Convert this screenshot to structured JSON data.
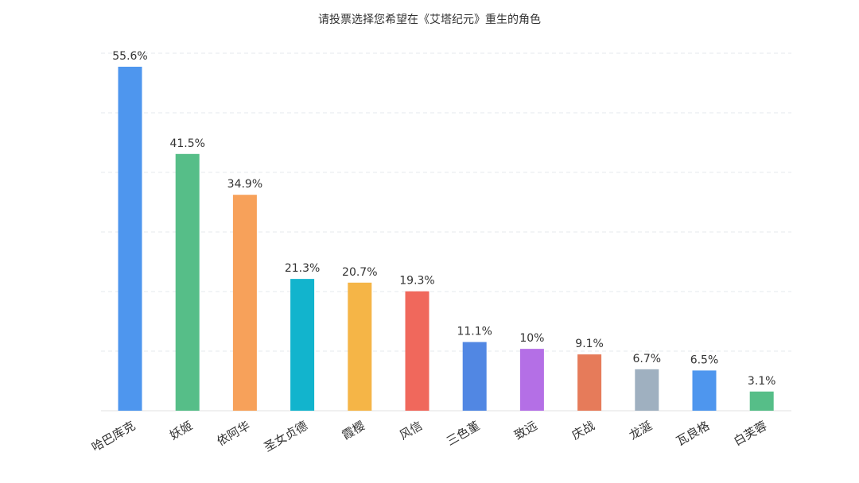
{
  "chart_data": {
    "type": "bar",
    "title": "请投票选择您希望在《艾塔纪元》重生的角色",
    "xlabel": "",
    "ylabel": "",
    "unit": "%",
    "ylim": [
      0,
      60
    ],
    "grid": true,
    "legend": "none",
    "categories": [
      "哈巴库克",
      "妖姬",
      "依阿华",
      "圣女贞德",
      "霞樱",
      "风信",
      "三色堇",
      "致远",
      "庆战",
      "龙涎",
      "瓦良格",
      "白芙蓉"
    ],
    "values": [
      55.6,
      41.5,
      34.9,
      21.3,
      20.7,
      19.3,
      11.1,
      10,
      9.1,
      6.7,
      6.5,
      3.1
    ],
    "value_labels": [
      "55.6%",
      "41.5%",
      "34.9%",
      "21.3%",
      "20.7%",
      "19.3%",
      "11.1%",
      "10%",
      "9.1%",
      "6.7%",
      "6.5%",
      "3.1%"
    ],
    "colors": [
      "#4e96ee",
      "#56be88",
      "#f7a15a",
      "#12b4cd",
      "#f5b547",
      "#f0685c",
      "#5187e3",
      "#b46fe6",
      "#e67b5a",
      "#9fb0c0",
      "#4e96ee",
      "#56be88"
    ]
  }
}
